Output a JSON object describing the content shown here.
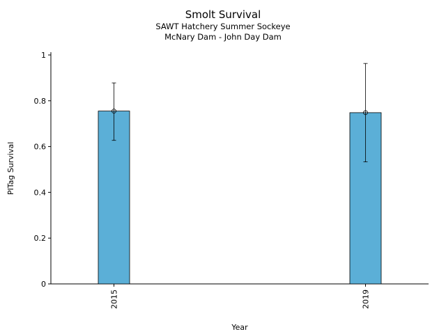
{
  "chart_data": {
    "type": "bar",
    "title": "Smolt Survival",
    "subtitle_lines": [
      "SAWT Hatchery Summer Sockeye",
      "McNary Dam - John Day Dam"
    ],
    "xlabel": "Year",
    "ylabel": "PITag Survival",
    "categories": [
      "2015",
      "2019"
    ],
    "values": [
      0.755,
      0.748
    ],
    "error_low": [
      0.627,
      0.533
    ],
    "error_high": [
      0.878,
      0.963
    ],
    "ylim": [
      0,
      1
    ],
    "yticks": [
      "0",
      "0.2",
      "0.4",
      "0.6",
      "0.8",
      "1"
    ],
    "bar_color": "#5bafd7",
    "grid": false,
    "legend": "none"
  }
}
